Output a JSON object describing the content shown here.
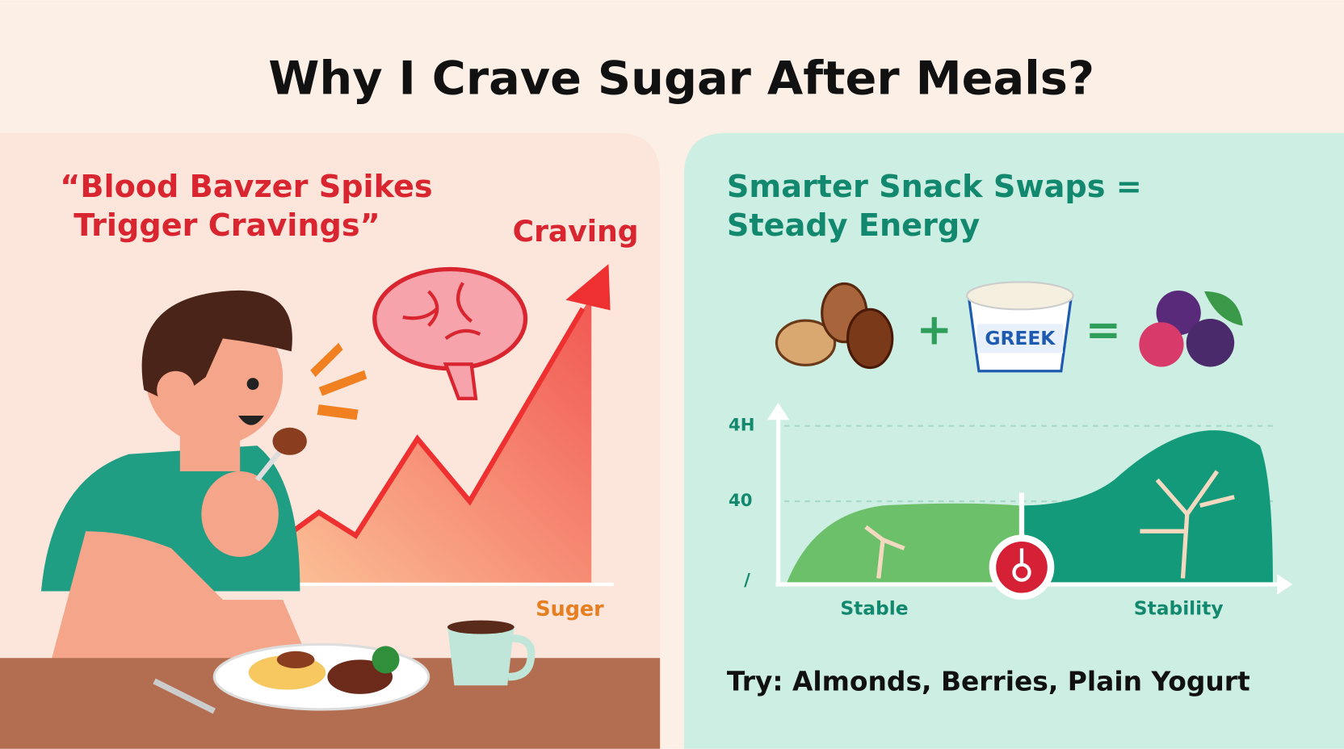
{
  "title": "Why I Crave Sugar After Meals?",
  "left_panel": {
    "heading_lines": [
      "“Blood Bavzer Spikes",
      "Trigger Cravings”"
    ],
    "chart_labels": {
      "peak": "Craving",
      "axis": "Suger"
    }
  },
  "right_panel": {
    "heading_lines": [
      "Smarter Snack Swaps =",
      "Steady Energy"
    ],
    "equation": {
      "plus": "+",
      "yogurt_label": "GREEK",
      "equals": "="
    },
    "chart": {
      "y_labels": [
        "4H",
        "40",
        "/"
      ],
      "x_labels": [
        "Stable",
        "Stability"
      ]
    },
    "tip": "Try: Almonds, Berries, Plain Yogurt"
  }
}
